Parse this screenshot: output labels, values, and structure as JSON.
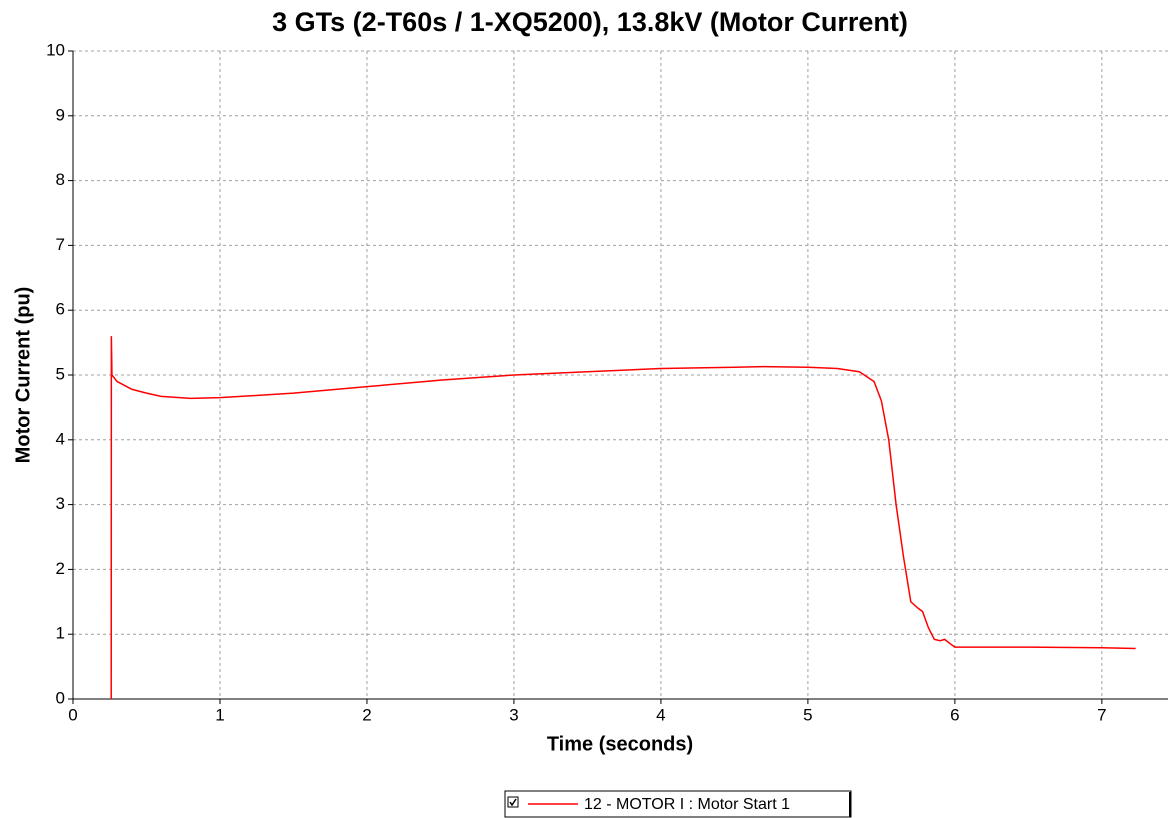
{
  "chart_data": {
    "type": "line",
    "title": "3 GTs (2-T60s / 1-XQ5200), 13.8kV (Motor Current)",
    "x_label": "Time (seconds)",
    "y_label": "Motor Current (pu)",
    "x": [
      0.26,
      0.261,
      0.265,
      0.3,
      0.4,
      0.5,
      0.6,
      0.8,
      1.0,
      1.5,
      2.0,
      2.5,
      3.0,
      3.5,
      4.0,
      4.5,
      4.7,
      5.0,
      5.2,
      5.35,
      5.45,
      5.5,
      5.55,
      5.6,
      5.65,
      5.7,
      5.75,
      5.78,
      5.82,
      5.86,
      5.9,
      5.93,
      5.97,
      6.0,
      6.2,
      6.5,
      7.0,
      7.23
    ],
    "series": [
      {
        "name": "12 - MOTOR I : Motor Start 1",
        "color": "#ff0000",
        "values": [
          0,
          5.6,
          5.0,
          4.9,
          4.78,
          4.72,
          4.67,
          4.64,
          4.65,
          4.72,
          4.82,
          4.92,
          5.0,
          5.05,
          5.1,
          5.12,
          5.13,
          5.12,
          5.1,
          5.05,
          4.9,
          4.6,
          4.0,
          3.0,
          2.2,
          1.5,
          1.4,
          1.35,
          1.1,
          0.92,
          0.9,
          0.92,
          0.85,
          0.8,
          0.8,
          0.8,
          0.79,
          0.78
        ]
      }
    ],
    "xlim": [
      0,
      7.45
    ],
    "xticks": [
      0,
      1,
      2,
      3,
      4,
      5,
      6,
      7
    ],
    "ylim": [
      0,
      10
    ],
    "yticks": [
      0,
      1,
      2,
      3,
      4,
      5,
      6,
      7,
      8,
      9,
      10
    ],
    "grid": true
  }
}
